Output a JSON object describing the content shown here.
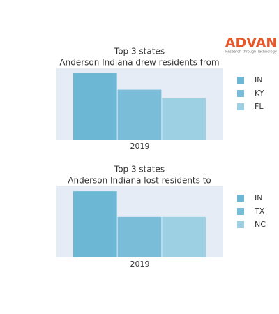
{
  "logo": {
    "text": "ADVAN",
    "tagline": "Research through Technology"
  },
  "chart_data": [
    {
      "type": "bar",
      "title_lines": [
        "Top 3 states",
        "Anderson Indiana drew residents from"
      ],
      "categories": [
        "2019"
      ],
      "ylim": [
        0,
        100
      ],
      "series": [
        {
          "name": "IN",
          "color": "#6cb7d4",
          "values": [
            94
          ]
        },
        {
          "name": "KY",
          "color": "#79bdd8",
          "values": [
            70
          ]
        },
        {
          "name": "FL",
          "color": "#9dd0e3",
          "values": [
            58
          ]
        }
      ]
    },
    {
      "type": "bar",
      "title_lines": [
        "Top 3 states",
        "Anderson Indiana lost residents to"
      ],
      "categories": [
        "2019"
      ],
      "ylim": [
        0,
        100
      ],
      "series": [
        {
          "name": "IN",
          "color": "#6cb7d4",
          "values": [
            93
          ]
        },
        {
          "name": "TX",
          "color": "#79bdd8",
          "values": [
            57
          ]
        },
        {
          "name": "NC",
          "color": "#9dd0e3",
          "values": [
            57
          ]
        }
      ]
    }
  ]
}
